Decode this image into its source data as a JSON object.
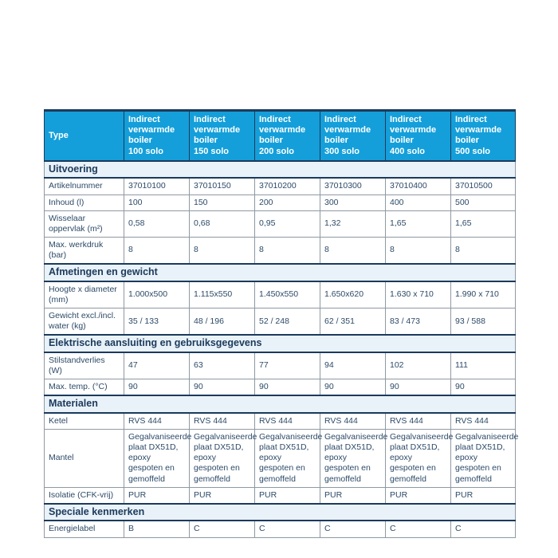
{
  "colors": {
    "header_bg": "#149fda",
    "header_text": "#ffffff",
    "section_bg": "#e9f2f8",
    "navy": "#1b3a5c",
    "body_text": "#2d4a68",
    "border_gray": "#8f99a3",
    "page_bg": "#ffffff"
  },
  "table": {
    "corner_label": "Type",
    "columns": [
      {
        "title": "Indirect verwarmde boiler",
        "model": "100 solo"
      },
      {
        "title": "Indirect verwarmde boiler",
        "model": "150 solo"
      },
      {
        "title": "Indirect verwarmde boiler",
        "model": "200 solo"
      },
      {
        "title": "Indirect verwarmde boiler",
        "model": "300 solo"
      },
      {
        "title": "Indirect verwarmde boiler",
        "model": "400 solo"
      },
      {
        "title": "Indirect verwarmde boiler",
        "model": "500 solo"
      }
    ],
    "sections": [
      {
        "title": "Uitvoering",
        "rows": [
          {
            "label": "Artikelnummer",
            "values": [
              "37010100",
              "37010150",
              "37010200",
              "37010300",
              "37010400",
              "37010500"
            ]
          },
          {
            "label": "Inhoud (l)",
            "values": [
              "100",
              "150",
              "200",
              "300",
              "400",
              "500"
            ]
          },
          {
            "label": "Wisselaar oppervlak (m²)",
            "values": [
              "0,58",
              "0,68",
              "0,95",
              "1,32",
              "1,65",
              "1,65"
            ]
          },
          {
            "label": "Max. werkdruk (bar)",
            "values": [
              "8",
              "8",
              "8",
              "8",
              "8",
              "8"
            ]
          }
        ]
      },
      {
        "title": "Afmetingen en gewicht",
        "rows": [
          {
            "label": "Hoogte x diameter (mm)",
            "values": [
              "1.000x500",
              "1.115x550",
              "1.450x550",
              "1.650x620",
              "1.630 x 710",
              "1.990 x 710"
            ]
          },
          {
            "label": "Gewicht excl./incl. water (kg)",
            "values": [
              "35 / 133",
              "48 / 196",
              "52 / 248",
              "62 / 351",
              "83 / 473",
              "93 / 588"
            ]
          }
        ]
      },
      {
        "title": "Elektrische aansluiting en gebruiksgegevens",
        "rows": [
          {
            "label": "Stilstandverlies (W)",
            "values": [
              "47",
              "63",
              "77",
              "94",
              "102",
              "111"
            ]
          },
          {
            "label": "Max. temp. (°C)",
            "values": [
              "90",
              "90",
              "90",
              "90",
              "90",
              "90"
            ]
          }
        ]
      },
      {
        "title": "Materialen",
        "rows": [
          {
            "label": "Ketel",
            "values": [
              "RVS 444",
              "RVS 444",
              "RVS 444",
              "RVS 444",
              "RVS 444",
              "RVS 444"
            ]
          },
          {
            "label": "Mantel",
            "values": [
              "Gegalvaniseerde plaat DX51D, epoxy gespoten en gemoffeld",
              "Gegalvaniseerde plaat DX51D, epoxy gespoten en gemoffeld",
              "Gegalvaniseerde plaat DX51D, epoxy gespoten en gemoffeld",
              "Gegalvaniseerde plaat DX51D, epoxy gespoten en gemoffeld",
              "Gegalvaniseerde plaat DX51D, epoxy gespoten en gemoffeld",
              "Gegalvaniseerde plaat DX51D, epoxy gespoten en gemoffeld"
            ]
          },
          {
            "label": "Isolatie (CFK-vrij)",
            "values": [
              "PUR",
              "PUR",
              "PUR",
              "PUR",
              "PUR",
              "PUR"
            ]
          }
        ]
      },
      {
        "title": "Speciale kenmerken",
        "rows": [
          {
            "label": "Energielabel",
            "values": [
              "B",
              "C",
              "C",
              "C",
              "C",
              "C"
            ]
          }
        ]
      }
    ]
  }
}
